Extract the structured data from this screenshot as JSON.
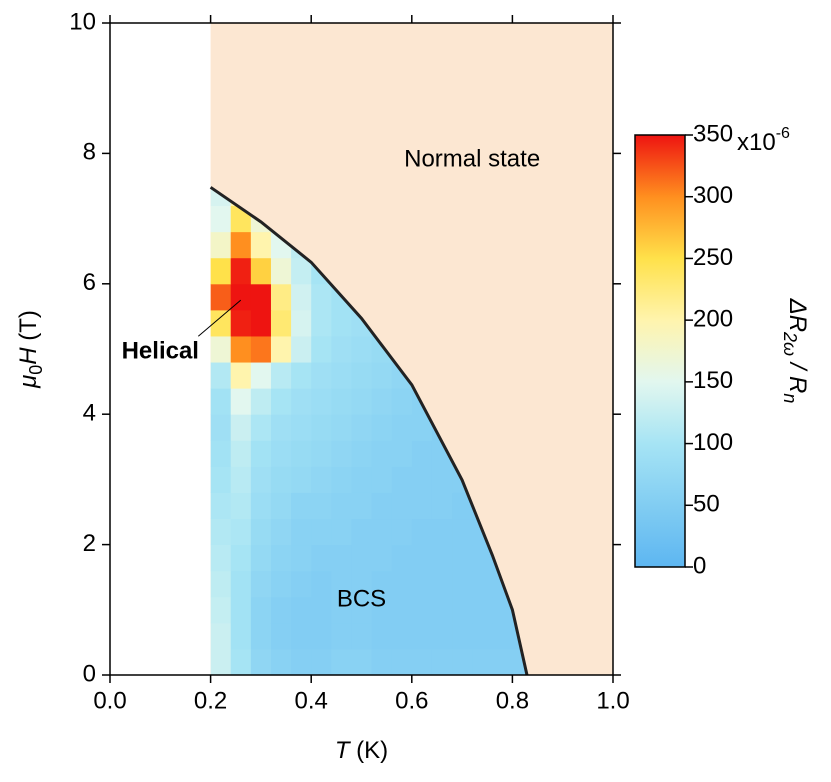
{
  "chart_data": {
    "type": "heatmap",
    "xlabel": {
      "var": "T",
      "unit": " (K)"
    },
    "ylabel": {
      "pre": "μ",
      "sub": "0",
      "var": "H",
      "unit": " (T)"
    },
    "xlim": [
      0,
      1.0
    ],
    "xticks": [
      {
        "value": 0,
        "label": "0.0"
      },
      0.2,
      0.4,
      0.6,
      0.8,
      {
        "value": 1,
        "label": "1.0"
      }
    ],
    "ylim": [
      0,
      10
    ],
    "yticks": [
      0,
      2,
      4,
      6,
      8,
      10
    ],
    "normal_region": {
      "x": [
        0.2,
        1.0
      ],
      "color": "#fce7d2"
    },
    "x_edges": [
      0.2,
      0.24,
      0.28,
      0.32,
      0.36,
      0.4,
      0.44,
      0.48,
      0.52,
      0.56,
      0.6,
      0.64,
      0.68,
      0.72,
      0.76,
      0.8,
      0.84
    ],
    "y_edges": [
      0,
      0.4,
      0.8,
      1.2,
      1.6,
      2.0,
      2.4,
      2.8,
      3.2,
      3.6,
      4.0,
      4.4,
      4.8,
      5.2,
      5.6,
      6.0,
      6.4,
      6.8,
      7.2,
      7.6
    ],
    "z": [
      [
        130,
        100,
        70,
        60,
        55,
        55,
        60,
        60,
        55,
        55,
        55,
        55,
        55,
        55,
        55,
        55
      ],
      [
        130,
        95,
        65,
        55,
        50,
        50,
        55,
        55,
        50,
        50,
        50,
        50,
        50,
        50,
        50,
        50
      ],
      [
        125,
        95,
        65,
        55,
        50,
        50,
        55,
        55,
        50,
        50,
        50,
        50,
        50,
        50,
        50,
        50
      ],
      [
        120,
        95,
        70,
        60,
        55,
        50,
        55,
        55,
        50,
        50,
        50,
        50,
        50,
        50,
        50,
        null
      ],
      [
        115,
        100,
        75,
        65,
        60,
        55,
        55,
        55,
        55,
        50,
        50,
        50,
        50,
        50,
        50,
        null
      ],
      [
        110,
        105,
        80,
        70,
        60,
        60,
        60,
        55,
        55,
        55,
        50,
        50,
        50,
        50,
        null,
        null
      ],
      [
        105,
        110,
        85,
        75,
        65,
        65,
        60,
        60,
        55,
        55,
        55,
        55,
        50,
        50,
        null,
        null
      ],
      [
        100,
        115,
        90,
        80,
        75,
        70,
        65,
        60,
        60,
        55,
        55,
        55,
        55,
        null,
        null,
        null
      ],
      [
        95,
        120,
        95,
        85,
        80,
        75,
        70,
        65,
        60,
        60,
        55,
        55,
        55,
        null,
        null,
        null
      ],
      [
        90,
        130,
        105,
        90,
        85,
        80,
        75,
        70,
        65,
        60,
        60,
        55,
        null,
        null,
        null,
        null
      ],
      [
        95,
        150,
        120,
        100,
        90,
        85,
        80,
        75,
        70,
        65,
        60,
        null,
        null,
        null,
        null,
        null
      ],
      [
        110,
        200,
        150,
        115,
        100,
        90,
        85,
        80,
        75,
        70,
        65,
        null,
        null,
        null,
        null,
        null
      ],
      [
        170,
        300,
        310,
        200,
        130,
        100,
        90,
        85,
        80,
        75,
        null,
        null,
        null,
        null,
        null,
        null
      ],
      [
        240,
        345,
        350,
        230,
        140,
        105,
        95,
        90,
        85,
        null,
        null,
        null,
        null,
        null,
        null,
        null
      ],
      [
        320,
        350,
        350,
        220,
        135,
        105,
        95,
        90,
        null,
        null,
        null,
        null,
        null,
        null,
        null,
        null
      ],
      [
        250,
        345,
        260,
        170,
        125,
        100,
        null,
        null,
        null,
        null,
        null,
        null,
        null,
        null,
        null,
        null
      ],
      [
        180,
        300,
        200,
        150,
        120,
        null,
        null,
        null,
        null,
        null,
        null,
        null,
        null,
        null,
        null,
        null
      ],
      [
        150,
        240,
        170,
        140,
        null,
        null,
        null,
        null,
        null,
        null,
        null,
        null,
        null,
        null,
        null,
        null
      ],
      [
        140,
        200,
        null,
        null,
        null,
        null,
        null,
        null,
        null,
        null,
        null,
        null,
        null,
        null,
        null,
        null
      ]
    ],
    "boundary": {
      "x": [
        0.2,
        0.3,
        0.4,
        0.5,
        0.6,
        0.7,
        0.76,
        0.8,
        0.829
      ],
      "y": [
        7.48,
        6.95,
        6.33,
        5.47,
        4.45,
        2.99,
        1.84,
        1.0,
        0
      ],
      "color": "#222222"
    },
    "colorscale": [
      [
        0,
        "#5db6f1"
      ],
      [
        100,
        "#a6e4f4"
      ],
      [
        150,
        "#e2f7ef"
      ],
      [
        200,
        "#fff4ad"
      ],
      [
        250,
        "#ffe14a"
      ],
      [
        300,
        "#ff8f1f"
      ],
      [
        350,
        "#ee1411"
      ]
    ],
    "colorbar": {
      "lim": [
        0,
        350
      ],
      "ticks": [
        0,
        50,
        100,
        150,
        200,
        250,
        300,
        350
      ],
      "scale": {
        "base": "x10",
        "exponent": "-6"
      },
      "label": {
        "pre": "ΔR",
        "sub": "2ω",
        "mid": " / R",
        "sub2": "n"
      }
    },
    "annotations": [
      {
        "text": "Normal state",
        "x": 0.72,
        "y": 7.9,
        "color": "#000000"
      },
      {
        "text": "Helical",
        "x": 0.1,
        "y": 4.95,
        "color": "#e8141c",
        "bold": true,
        "arrow_to": [
          0.26,
          5.75
        ]
      },
      {
        "text": "BCS",
        "x": 0.5,
        "y": 1.15,
        "color": "#000000"
      }
    ]
  }
}
